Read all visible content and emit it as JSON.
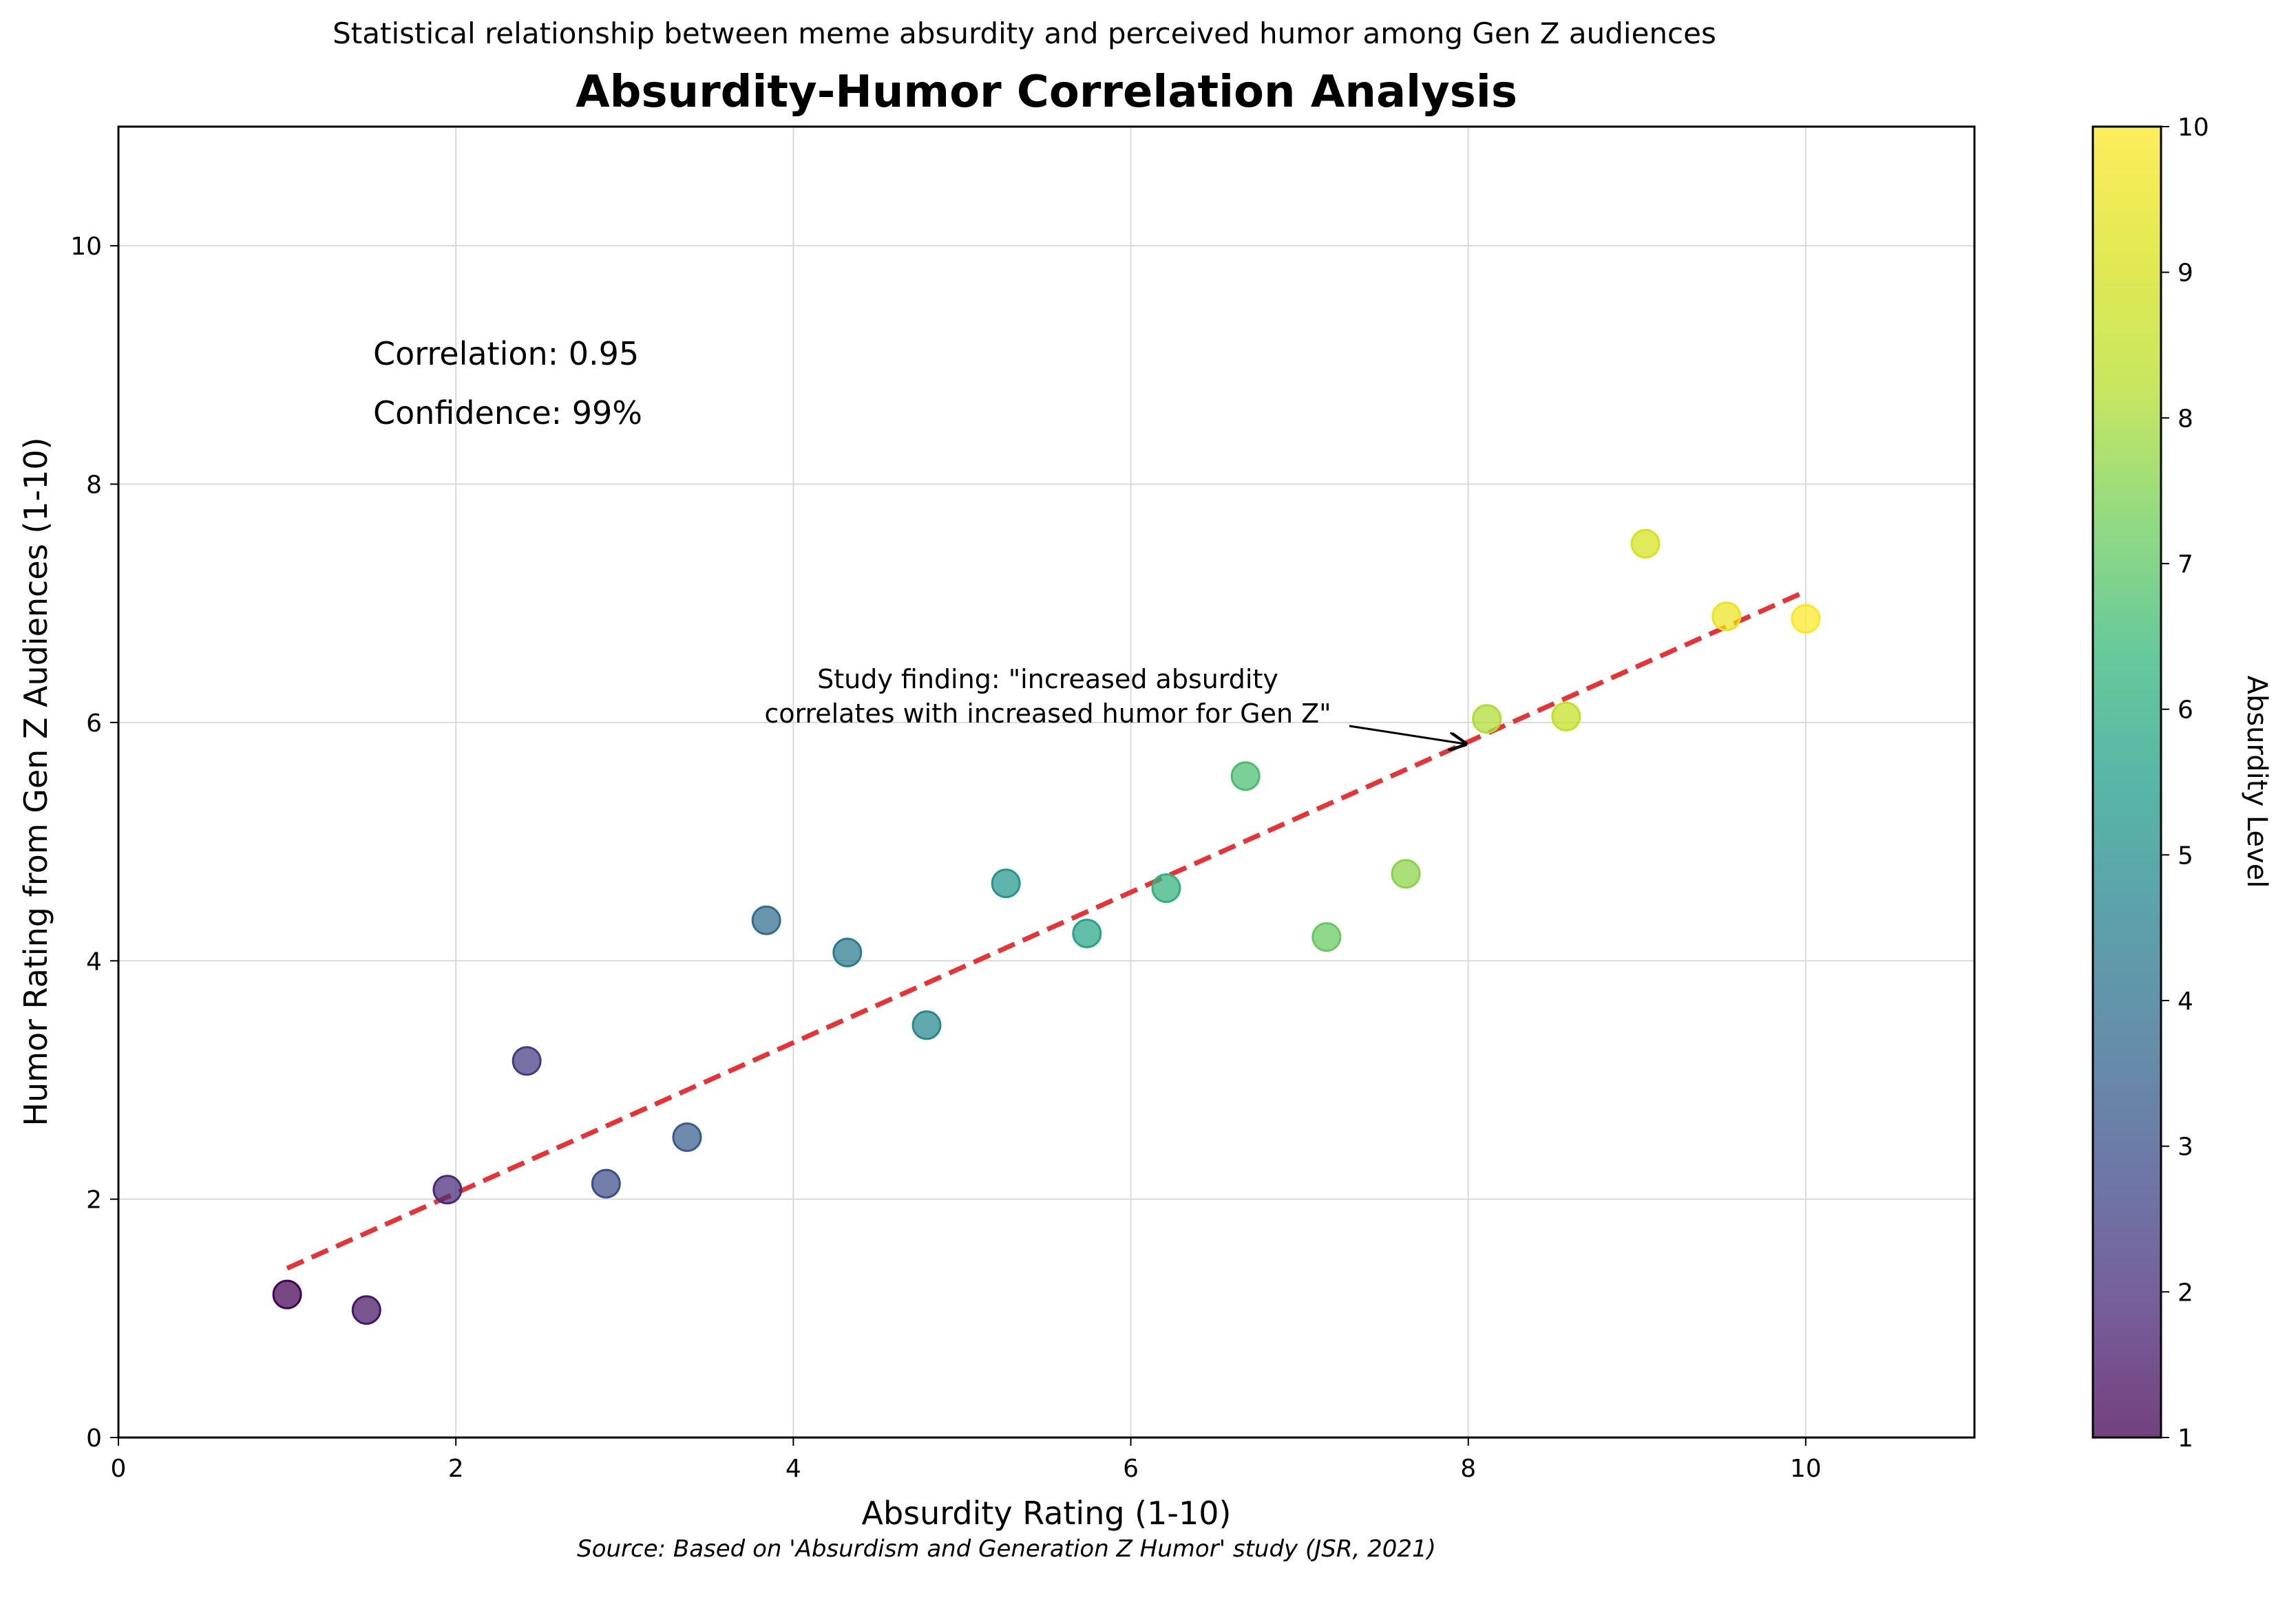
{
  "chart_data": {
    "type": "scatter",
    "title": "Absurdity-Humor Correlation Analysis",
    "subtitle": "Statistical relationship between meme absurdity and perceived humor among Gen Z audiences",
    "xlabel": "Absurdity Rating (1-10)",
    "ylabel": "Humor Rating from Gen Z Audiences (1-10)",
    "xlim": [
      0,
      11
    ],
    "ylim": [
      0,
      11
    ],
    "x_ticks": [
      0,
      2,
      4,
      6,
      8,
      10
    ],
    "y_ticks": [
      0,
      2,
      4,
      6,
      8,
      10
    ],
    "grid": true,
    "points": [
      {
        "x": 1.0,
        "y": 1.2,
        "level": 1.0
      },
      {
        "x": 1.47,
        "y": 1.07,
        "level": 1.47
      },
      {
        "x": 1.95,
        "y": 2.08,
        "level": 1.95
      },
      {
        "x": 2.42,
        "y": 3.16,
        "level": 2.42
      },
      {
        "x": 2.89,
        "y": 2.13,
        "level": 2.89
      },
      {
        "x": 3.37,
        "y": 2.52,
        "level": 3.37
      },
      {
        "x": 3.84,
        "y": 4.34,
        "level": 3.84
      },
      {
        "x": 4.32,
        "y": 4.07,
        "level": 4.32
      },
      {
        "x": 4.79,
        "y": 3.46,
        "level": 4.79
      },
      {
        "x": 5.26,
        "y": 4.65,
        "level": 5.26
      },
      {
        "x": 5.74,
        "y": 4.23,
        "level": 5.74
      },
      {
        "x": 6.21,
        "y": 4.61,
        "level": 6.21
      },
      {
        "x": 6.68,
        "y": 5.55,
        "level": 6.68
      },
      {
        "x": 7.16,
        "y": 4.2,
        "level": 7.16
      },
      {
        "x": 7.63,
        "y": 4.73,
        "level": 7.63
      },
      {
        "x": 8.11,
        "y": 6.03,
        "level": 8.11
      },
      {
        "x": 8.58,
        "y": 6.05,
        "level": 8.58
      },
      {
        "x": 9.05,
        "y": 7.5,
        "level": 9.05
      },
      {
        "x": 9.53,
        "y": 6.89,
        "level": 9.53
      },
      {
        "x": 10.0,
        "y": 6.87,
        "level": 10.0
      }
    ],
    "trendline": {
      "x": [
        1.0,
        10.0
      ],
      "y": [
        1.42,
        7.1
      ],
      "color": "#e8272a",
      "style": "dashed"
    },
    "stats": {
      "correlation": "Correlation: 0.95",
      "confidence": "Confidence: 99%"
    },
    "annotation": {
      "lines": [
        "Study finding: \"increased absurdity",
        "correlates with increased humor for Gen Z\""
      ],
      "arrow_to": {
        "x": 8.0,
        "y": 5.82
      }
    },
    "colorbar": {
      "label": "Absurdity Level",
      "min": 1,
      "max": 10,
      "ticks": [
        1,
        2,
        3,
        4,
        5,
        6,
        7,
        8,
        9,
        10
      ],
      "colormap": "viridis"
    },
    "source": "Source: Based on 'Absurdism and Generation Z Humor' study (JSR, 2021)"
  }
}
